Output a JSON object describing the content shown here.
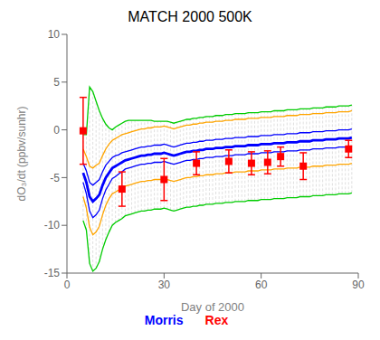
{
  "chart_data": {
    "type": "line",
    "title": "MATCH 2000  500K",
    "x_label": "Day of 2000",
    "y_label": "dO₃/dt (ppbv/sunhr)",
    "xlim": [
      0,
      90
    ],
    "ylim": [
      -15,
      10
    ],
    "xticks": [
      0,
      30,
      60,
      90
    ],
    "yticks": [
      -15,
      -10,
      -5,
      0,
      5,
      10
    ],
    "grid": false,
    "x": [
      5,
      6,
      7,
      8,
      9,
      10,
      11,
      12,
      13,
      14,
      15,
      16,
      17,
      18,
      19,
      20,
      21,
      22,
      23,
      24,
      25,
      26,
      27,
      28,
      29,
      30,
      31,
      32,
      33,
      34,
      35,
      36,
      37,
      38,
      39,
      40,
      41,
      42,
      43,
      44,
      45,
      46,
      47,
      48,
      49,
      50,
      51,
      52,
      53,
      54,
      55,
      56,
      57,
      58,
      59,
      60,
      61,
      62,
      63,
      64,
      65,
      66,
      67,
      68,
      69,
      70,
      71,
      72,
      73,
      74,
      75,
      76,
      77,
      78,
      79,
      80,
      81,
      82,
      83,
      84,
      85,
      86,
      87,
      88
    ],
    "series": [
      {
        "color": "#00cc00",
        "values": [
          -0.5,
          -0.5,
          4.5,
          4.0,
          3.0,
          2.0,
          1.2,
          0.6,
          0.2,
          -0.0,
          0.3,
          0.5,
          0.7,
          0.9,
          1.0,
          1.0,
          1.0,
          1.0,
          1.0,
          1.0,
          1.0,
          1.0,
          0.9,
          0.9,
          0.9,
          0.9,
          0.9,
          0.8,
          0.7,
          0.8,
          0.9,
          1.0,
          1.1,
          1.1,
          1.2,
          1.2,
          1.3,
          1.3,
          1.4,
          1.4,
          1.4,
          1.5,
          1.5,
          1.5,
          1.6,
          1.6,
          1.6,
          1.7,
          1.7,
          1.7,
          1.7,
          1.8,
          1.8,
          1.8,
          1.8,
          1.9,
          1.9,
          1.9,
          1.9,
          2.0,
          2.0,
          2.0,
          2.0,
          2.1,
          2.1,
          2.1,
          2.1,
          2.2,
          2.2,
          2.2,
          2.2,
          2.3,
          2.3,
          2.3,
          2.3,
          2.4,
          2.4,
          2.4,
          2.4,
          2.5,
          2.5,
          2.5,
          2.5,
          2.6
        ]
      },
      {
        "color": "#00cc00",
        "values": [
          -9.5,
          -10.5,
          -14.0,
          -14.8,
          -14.5,
          -13.8,
          -12.5,
          -11.5,
          -10.7,
          -10.0,
          -9.7,
          -9.5,
          -9.3,
          -9.0,
          -8.9,
          -8.8,
          -8.7,
          -8.6,
          -8.5,
          -8.5,
          -8.4,
          -8.4,
          -8.3,
          -8.3,
          -8.3,
          -8.2,
          -8.3,
          -8.4,
          -8.5,
          -8.4,
          -8.3,
          -8.2,
          -8.1,
          -8.1,
          -8.0,
          -8.0,
          -7.9,
          -7.9,
          -7.8,
          -7.8,
          -7.8,
          -7.7,
          -7.7,
          -7.7,
          -7.6,
          -7.6,
          -7.6,
          -7.5,
          -7.5,
          -7.5,
          -7.5,
          -7.4,
          -7.4,
          -7.4,
          -7.4,
          -7.3,
          -7.3,
          -7.3,
          -7.3,
          -7.2,
          -7.2,
          -7.2,
          -7.2,
          -7.1,
          -7.1,
          -7.1,
          -7.1,
          -7.0,
          -7.0,
          -7.0,
          -7.0,
          -6.9,
          -6.9,
          -6.9,
          -6.9,
          -6.8,
          -6.8,
          -6.8,
          -6.8,
          -6.7,
          -6.7,
          -6.7,
          -6.7,
          -6.6
        ]
      },
      {
        "color": "#ffa500",
        "values": [
          -2.0,
          -2.8,
          -3.8,
          -4.0,
          -3.7,
          -3.5,
          -2.7,
          -2.0,
          -1.5,
          -1.1,
          -0.9,
          -0.7,
          -0.5,
          -0.4,
          -0.3,
          -0.2,
          -0.1,
          0.0,
          0.1,
          0.1,
          0.2,
          0.2,
          0.3,
          0.3,
          0.3,
          0.4,
          0.3,
          0.2,
          0.1,
          0.2,
          0.3,
          0.4,
          0.5,
          0.5,
          0.6,
          0.6,
          0.7,
          0.7,
          0.8,
          0.8,
          0.8,
          0.9,
          0.9,
          0.9,
          1.0,
          1.0,
          1.0,
          1.1,
          1.1,
          1.1,
          1.1,
          1.2,
          1.2,
          1.2,
          1.2,
          1.3,
          1.3,
          1.3,
          1.3,
          1.4,
          1.4,
          1.4,
          1.4,
          1.5,
          1.5,
          1.5,
          1.5,
          1.6,
          1.6,
          1.6,
          1.6,
          1.7,
          1.7,
          1.7,
          1.7,
          1.8,
          1.8,
          1.8,
          1.8,
          1.9,
          1.9,
          1.9,
          1.9,
          2.0
        ]
      },
      {
        "color": "#ffa500",
        "values": [
          -7.0,
          -8.2,
          -10.2,
          -11.0,
          -10.7,
          -10.1,
          -8.9,
          -7.9,
          -7.2,
          -6.7,
          -6.5,
          -6.3,
          -6.1,
          -5.9,
          -5.8,
          -5.7,
          -5.6,
          -5.5,
          -5.4,
          -5.4,
          -5.3,
          -5.3,
          -5.2,
          -5.2,
          -5.2,
          -5.1,
          -5.2,
          -5.3,
          -5.4,
          -5.3,
          -5.2,
          -5.1,
          -5.0,
          -5.0,
          -4.9,
          -4.9,
          -4.8,
          -4.8,
          -4.7,
          -4.7,
          -4.7,
          -4.6,
          -4.6,
          -4.6,
          -4.5,
          -4.5,
          -4.5,
          -4.4,
          -4.4,
          -4.4,
          -4.4,
          -4.3,
          -4.3,
          -4.3,
          -4.3,
          -4.2,
          -4.2,
          -4.2,
          -4.2,
          -4.1,
          -4.1,
          -4.1,
          -4.1,
          -4.0,
          -4.0,
          -4.0,
          -4.0,
          -3.9,
          -3.9,
          -3.9,
          -3.9,
          -3.8,
          -3.8,
          -3.8,
          -3.8,
          -3.7,
          -3.7,
          -3.7,
          -3.7,
          -3.6,
          -3.6,
          -3.6,
          -3.6,
          -3.5
        ]
      },
      {
        "color": "#0000ff",
        "values": [
          -3.5,
          -4.3,
          -5.5,
          -5.8,
          -5.5,
          -5.2,
          -4.4,
          -3.7,
          -3.3,
          -2.9,
          -2.7,
          -2.6,
          -2.4,
          -2.3,
          -2.2,
          -2.1,
          -2.0,
          -1.9,
          -1.8,
          -1.8,
          -1.7,
          -1.7,
          -1.6,
          -1.6,
          -1.6,
          -1.5,
          -1.6,
          -1.7,
          -1.8,
          -1.7,
          -1.6,
          -1.5,
          -1.4,
          -1.4,
          -1.3,
          -1.3,
          -1.2,
          -1.2,
          -1.1,
          -1.1,
          -1.1,
          -1.0,
          -1.0,
          -1.0,
          -0.9,
          -0.9,
          -0.9,
          -0.8,
          -0.8,
          -0.8,
          -0.8,
          -0.7,
          -0.7,
          -0.7,
          -0.7,
          -0.6,
          -0.6,
          -0.6,
          -0.6,
          -0.5,
          -0.5,
          -0.5,
          -0.5,
          -0.4,
          -0.4,
          -0.4,
          -0.4,
          -0.3,
          -0.3,
          -0.3,
          -0.3,
          -0.2,
          -0.2,
          -0.2,
          -0.2,
          -0.1,
          -0.1,
          -0.1,
          -0.1,
          0.0,
          0.0,
          0.0,
          0.0,
          0.1
        ]
      },
      {
        "color": "#0000ff",
        "values": [
          -5.5,
          -6.7,
          -8.5,
          -9.2,
          -8.9,
          -8.4,
          -7.2,
          -6.3,
          -5.7,
          -5.1,
          -4.9,
          -4.6,
          -4.4,
          -4.1,
          -4.0,
          -3.9,
          -3.8,
          -3.7,
          -3.6,
          -3.6,
          -3.5,
          -3.5,
          -3.4,
          -3.4,
          -3.4,
          -3.3,
          -3.4,
          -3.5,
          -3.6,
          -3.5,
          -3.4,
          -3.3,
          -3.2,
          -3.2,
          -3.1,
          -3.1,
          -3.0,
          -3.0,
          -2.9,
          -2.9,
          -2.9,
          -2.8,
          -2.8,
          -2.8,
          -2.7,
          -2.7,
          -2.7,
          -2.6,
          -2.6,
          -2.6,
          -2.6,
          -2.5,
          -2.5,
          -2.5,
          -2.5,
          -2.4,
          -2.4,
          -2.4,
          -2.4,
          -2.3,
          -2.3,
          -2.3,
          -2.3,
          -2.2,
          -2.2,
          -2.2,
          -2.2,
          -2.1,
          -2.1,
          -2.1,
          -2.1,
          -2.0,
          -2.0,
          -2.0,
          -2.0,
          -1.9,
          -1.9,
          -1.9,
          -1.9,
          -1.8,
          -1.8,
          -1.8,
          -1.8,
          -1.7
        ]
      },
      {
        "name": "Morris",
        "color": "#0000ff",
        "values": [
          -4.5,
          -5.5,
          -7.0,
          -7.5,
          -7.2,
          -6.8,
          -5.8,
          -5.0,
          -4.5,
          -4.0,
          -3.8,
          -3.6,
          -3.4,
          -3.2,
          -3.1,
          -3.0,
          -2.9,
          -2.8,
          -2.7,
          -2.7,
          -2.6,
          -2.6,
          -2.5,
          -2.5,
          -2.5,
          -2.4,
          -2.5,
          -2.6,
          -2.7,
          -2.6,
          -2.5,
          -2.4,
          -2.3,
          -2.3,
          -2.2,
          -2.2,
          -2.1,
          -2.1,
          -2.0,
          -2.0,
          -2.0,
          -1.9,
          -1.9,
          -1.9,
          -1.8,
          -1.8,
          -1.8,
          -1.7,
          -1.7,
          -1.7,
          -1.7,
          -1.6,
          -1.6,
          -1.6,
          -1.6,
          -1.5,
          -1.5,
          -1.5,
          -1.5,
          -1.4,
          -1.4,
          -1.4,
          -1.4,
          -1.3,
          -1.3,
          -1.3,
          -1.3,
          -1.2,
          -1.2,
          -1.2,
          -1.2,
          -1.1,
          -1.1,
          -1.1,
          -1.1,
          -1.0,
          -1.0,
          -1.0,
          -1.0,
          -0.9,
          -0.9,
          -0.9,
          -0.9,
          -0.8
        ]
      },
      {
        "name": "Rex",
        "type": "scatter",
        "marker": "square",
        "color": "#ff0000",
        "x": [
          5,
          17,
          30,
          40,
          50,
          57,
          62,
          66,
          73,
          87
        ],
        "values": [
          -0.1,
          -6.2,
          -5.2,
          -3.5,
          -3.3,
          -3.5,
          -3.4,
          -2.8,
          -3.8,
          -2.0
        ],
        "yerr": [
          3.5,
          1.8,
          2.2,
          1.2,
          1.2,
          1.2,
          1.2,
          1.0,
          1.4,
          0.9
        ]
      }
    ]
  }
}
